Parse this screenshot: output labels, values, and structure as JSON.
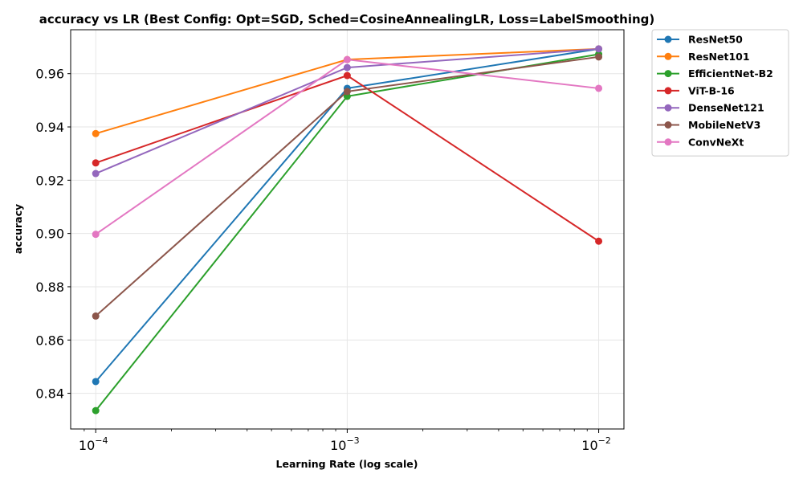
{
  "chart_data": {
    "type": "line",
    "title": "accuracy vs LR (Best Config: Opt=SGD, Sched=CosineAnnealingLR, Loss=LabelSmoothing)",
    "xlabel": "Learning Rate (log scale)",
    "ylabel": "accuracy",
    "x_scale": "log",
    "x": [
      0.0001,
      0.001,
      0.01
    ],
    "x_tick_labels": [
      {
        "base": "10",
        "exp": "−4"
      },
      {
        "base": "10",
        "exp": "−3"
      },
      {
        "base": "10",
        "exp": "−2"
      }
    ],
    "xlim": [
      7.95e-05,
      0.0126
    ],
    "ylim": [
      0.8266,
      0.9765
    ],
    "y_ticks": [
      "0.84",
      "0.86",
      "0.88",
      "0.90",
      "0.92",
      "0.94",
      "0.96"
    ],
    "grid": true,
    "legend_position": "outside-right-top",
    "series": [
      {
        "name": "ResNet50",
        "color": "#1f77b4",
        "values": [
          0.8444,
          0.9545,
          0.9693
        ]
      },
      {
        "name": "ResNet101",
        "color": "#ff7f0e",
        "values": [
          0.9375,
          0.9653,
          0.9693
        ]
      },
      {
        "name": "EfficientNet-B2",
        "color": "#2ca02c",
        "values": [
          0.8335,
          0.9515,
          0.9673
        ]
      },
      {
        "name": "ViT-B-16",
        "color": "#d62728",
        "values": [
          0.9265,
          0.9593,
          0.8971
        ]
      },
      {
        "name": "DenseNet121",
        "color": "#9467bd",
        "values": [
          0.9225,
          0.9623,
          0.9693
        ]
      },
      {
        "name": "MobileNetV3",
        "color": "#8c564b",
        "values": [
          0.869,
          0.9533,
          0.9663
        ]
      },
      {
        "name": "ConvNeXt",
        "color": "#e377c2",
        "values": [
          0.8997,
          0.9653,
          0.9545
        ]
      }
    ]
  }
}
